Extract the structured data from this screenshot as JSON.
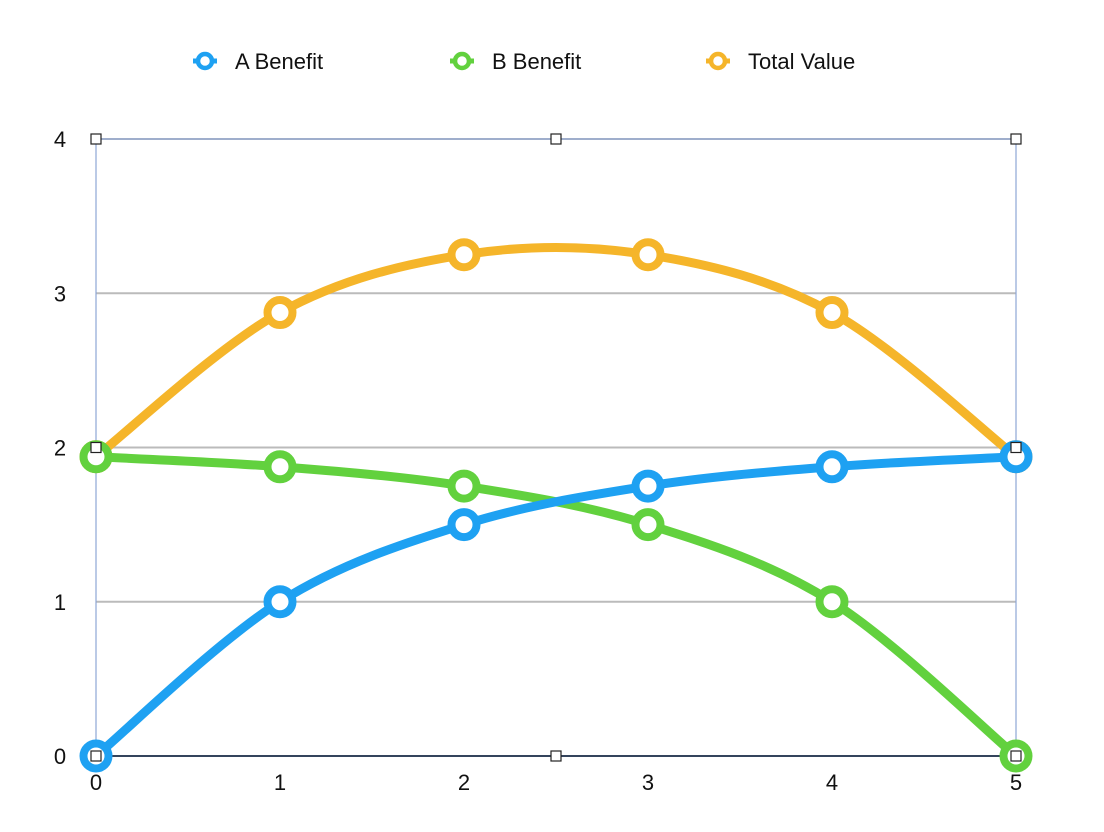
{
  "chart_data": {
    "type": "line",
    "title": "",
    "xlabel": "",
    "ylabel": "",
    "x": [
      0,
      1,
      2,
      3,
      4,
      5
    ],
    "xlim": [
      0,
      5
    ],
    "ylim": [
      0,
      4
    ],
    "x_ticks": [
      "0",
      "1",
      "2",
      "3",
      "4",
      "5"
    ],
    "y_ticks": [
      "0",
      "1",
      "2",
      "3",
      "4"
    ],
    "grid": "horizontal",
    "legend_position": "top-center",
    "smooth": true,
    "markers": "hollow-circle",
    "series": [
      {
        "name": "A Benefit",
        "color": "#1ea1f2",
        "values": [
          0,
          1.0,
          1.5,
          1.75,
          1.875,
          1.94
        ]
      },
      {
        "name": "B Benefit",
        "color": "#62d13e",
        "values": [
          1.94,
          1.875,
          1.75,
          1.5,
          1.0,
          0
        ]
      },
      {
        "name": "Total Value",
        "color": "#f5b52a",
        "values": [
          1.94,
          2.875,
          3.25,
          3.25,
          2.875,
          1.94
        ]
      }
    ],
    "colors": {
      "grid": "#bbbbbb",
      "x_axis": "#34445c",
      "selection_frame": "#8ea7d6"
    }
  }
}
